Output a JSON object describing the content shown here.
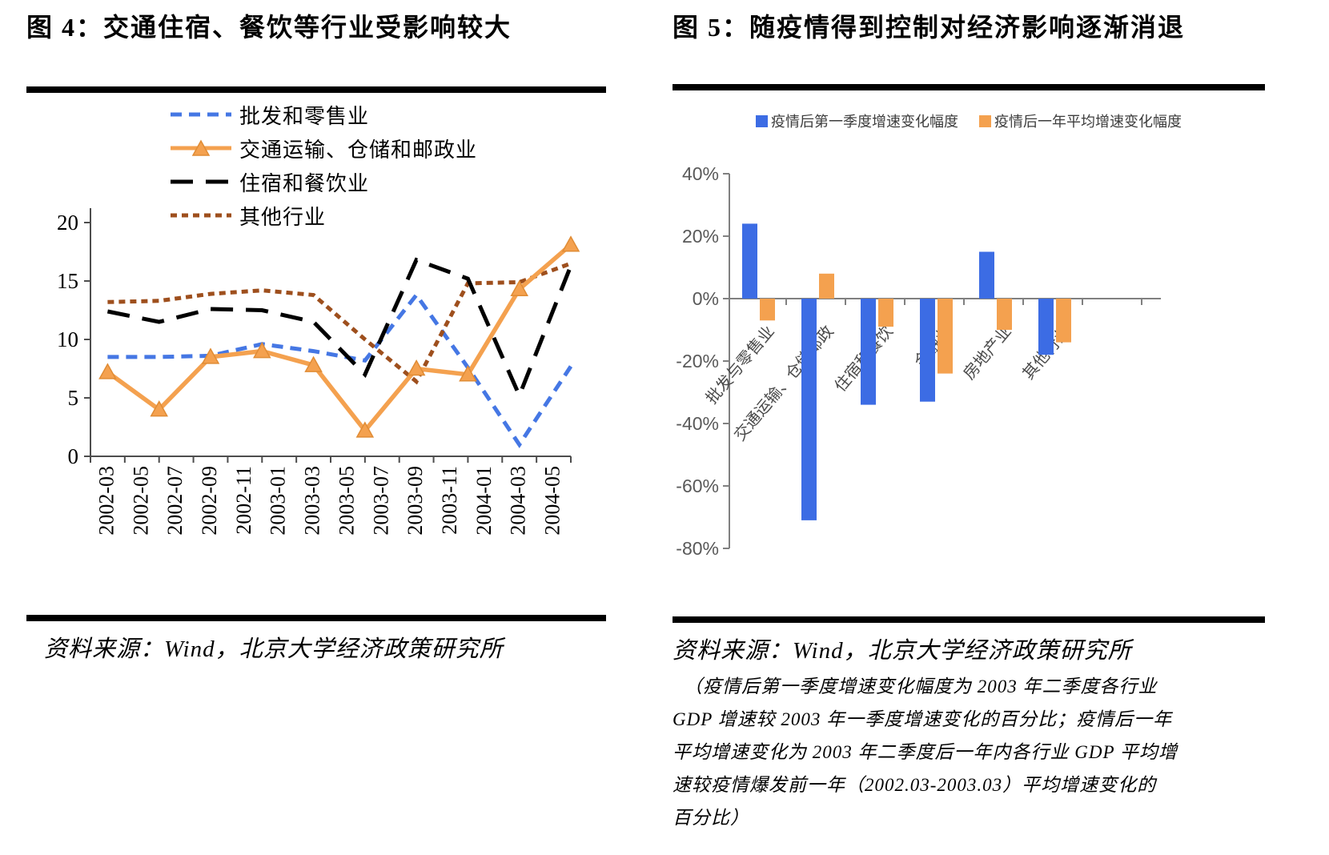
{
  "figure4": {
    "title": "图 4：交通住宿、餐饮等行业受影响较大",
    "source": "资料来源：Wind，北京大学经济政策研究所"
  },
  "figure5": {
    "title": "图 5：随疫情得到控制对经济影响逐渐消退",
    "source": "资料来源：Wind，北京大学经济政策研究所",
    "notes": [
      "（疫情后第一季度增速变化幅度为 2003 年二季度各行业",
      "GDP 增速较 2003 年一季度增速变化的百分比；疫情后一年",
      "平均增速变化为 2003 年二季度后一年内各行业 GDP 平均增",
      "速较疫情爆发前一年（2002.03-2003.03）平均增速变化的",
      "百分比）"
    ]
  },
  "chart_data": [
    {
      "id": "fig4",
      "type": "line",
      "title": "图 4：交通住宿、餐饮等行业受影响较大",
      "x_tick_labels": [
        "2002-03",
        "2002-05",
        "2002-07",
        "2002-09",
        "2002-11",
        "2003-01",
        "2003-03",
        "2003-05",
        "2003-07",
        "2003-09",
        "2003-11",
        "2004-01",
        "2004-03",
        "2004-05"
      ],
      "x_points": [
        "2002-03",
        "2002-06",
        "2002-09",
        "2002-12",
        "2003-03",
        "2003-06",
        "2003-09",
        "2003-12",
        "2004-03",
        "2004-06"
      ],
      "ylim": [
        0,
        20
      ],
      "yticks": [
        0,
        5,
        10,
        15,
        20
      ],
      "grid": false,
      "axis_color": "#4d4d4d",
      "legend_position": "top-inside",
      "series": [
        {
          "name": "批发和零售业",
          "color": "#4577E4",
          "style": "dashed",
          "values": [
            8.5,
            8.5,
            8.6,
            9.6,
            9.0,
            8.2,
            13.8,
            7.6,
            1.0,
            7.7
          ]
        },
        {
          "name": "交通运输、仓储和邮政业",
          "color": "#F4A14F",
          "style": "solid",
          "marker": "triangle",
          "values": [
            7.2,
            4.0,
            8.5,
            9.0,
            7.8,
            2.2,
            7.5,
            7.0,
            14.3,
            18.1
          ]
        },
        {
          "name": "住宿和餐饮业",
          "color": "#000000",
          "style": "longdash",
          "values": [
            12.4,
            11.5,
            12.6,
            12.5,
            11.5,
            7.0,
            16.8,
            15.2,
            5.2,
            16.3
          ]
        },
        {
          "name": "其他行业",
          "color": "#9E4F1D",
          "style": "dot",
          "values": [
            13.2,
            13.3,
            13.9,
            14.2,
            13.8,
            10.0,
            6.4,
            14.8,
            14.9,
            16.5
          ]
        }
      ]
    },
    {
      "id": "fig5",
      "type": "bar",
      "title": "图 5：随疫情得到控制对经济影响逐渐消退",
      "categories": [
        "批发与零售业",
        "交通运输、仓储邮政",
        "住宿和餐饮",
        "金融业",
        "房地产业",
        "其他行业"
      ],
      "ylim": [
        -80,
        40
      ],
      "ytick_labels": [
        "40%",
        "20%",
        "0%",
        "-20%",
        "-40%",
        "-60%",
        "-80%"
      ],
      "grid": false,
      "axis_color": "#808080",
      "label_color": "#595959",
      "legend_position": "top",
      "series": [
        {
          "name": "疫情后第一季度增速变化幅度",
          "color": "#3C6CE4",
          "values": [
            24,
            -71,
            -34,
            -33,
            15,
            -18
          ]
        },
        {
          "name": "疫情后一年平均增速变化幅度",
          "color": "#F4A14F",
          "values": [
            -7,
            8,
            -9,
            -24,
            -10,
            -14
          ]
        }
      ]
    }
  ]
}
